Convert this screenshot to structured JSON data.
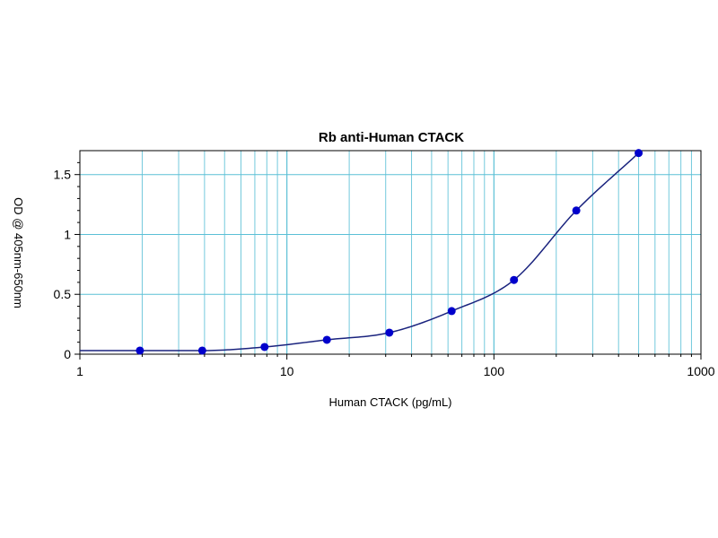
{
  "chart_data": {
    "type": "scatter",
    "title": "Rb anti-Human CTACK",
    "xlabel": "Human CTACK (pg/mL)",
    "ylabel": "OD @ 405nm-650nm",
    "x_scale": "log",
    "xlim": [
      1,
      1000
    ],
    "ylim": [
      0,
      1.7
    ],
    "x_ticks": [
      1,
      10,
      100,
      1000
    ],
    "x_tick_labels": [
      "1",
      "10",
      "100",
      "1000"
    ],
    "y_ticks": [
      0,
      0.5,
      1,
      1.5
    ],
    "y_tick_labels": [
      "0",
      "0.5",
      "1",
      "1.5"
    ],
    "grid": true,
    "series": [
      {
        "x": [
          1.95,
          3.9,
          7.8,
          15.6,
          31.25,
          62.5,
          125,
          250,
          500
        ],
        "values": [
          0.03,
          0.03,
          0.06,
          0.12,
          0.18,
          0.36,
          0.62,
          1.2,
          1.68
        ],
        "color": "#0000cc",
        "fit_curve": true,
        "curve_color": "#1a237e"
      }
    ],
    "grid_color": "#5bc0d6"
  }
}
